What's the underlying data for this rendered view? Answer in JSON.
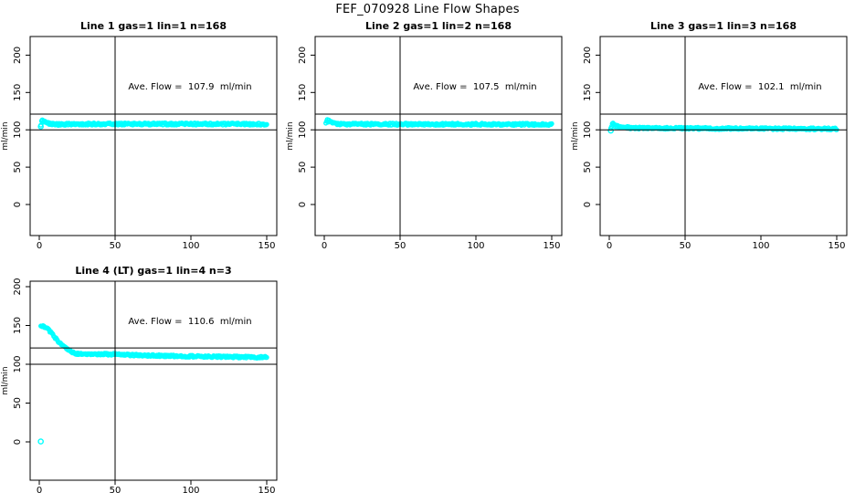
{
  "main_title": "FEF_070928  Line Flow Shapes",
  "accent_color": "#00FFFF",
  "axis_color": "#000000",
  "chart_data": [
    {
      "type": "scatter",
      "title": "Line 1 gas=1 lin=1 n=168",
      "annotation": "Ave. Flow =  107.9  ml/min",
      "ave_flow": 107.9,
      "ylabel": "ml/min",
      "x_ticks": [
        0,
        50,
        100,
        150
      ],
      "y_ticks": [
        0,
        50,
        100,
        150,
        200
      ],
      "xlim": [
        0,
        155
      ],
      "ylim": [
        0,
        200
      ],
      "vline": 50,
      "hlines": [
        100,
        121
      ],
      "grid": false,
      "series": [
        {
          "name": "flow-trace",
          "band": 1.4,
          "keypoints": [
            [
              1,
              108
            ],
            [
              1.5,
              110
            ],
            [
              2,
              112
            ],
            [
              3,
              111.5
            ],
            [
              4,
              110
            ],
            [
              5,
              109
            ],
            [
              7,
              108
            ],
            [
              10,
              107.5
            ],
            [
              15,
              107.3
            ],
            [
              20,
              107.5
            ],
            [
              30,
              107.8
            ],
            [
              50,
              107.8
            ],
            [
              70,
              107.8
            ],
            [
              100,
              107.9
            ],
            [
              120,
              107.8
            ],
            [
              150,
              107.6
            ]
          ]
        }
      ],
      "start_marker": [
        1,
        104.5
      ]
    },
    {
      "type": "scatter",
      "title": "Line 2 gas=1 lin=2 n=168",
      "annotation": "Ave. Flow =  107.5  ml/min",
      "ave_flow": 107.5,
      "ylabel": "ml/min",
      "x_ticks": [
        0,
        50,
        100,
        150
      ],
      "y_ticks": [
        0,
        50,
        100,
        150,
        200
      ],
      "xlim": [
        0,
        155
      ],
      "ylim": [
        0,
        200
      ],
      "vline": 50,
      "hlines": [
        100,
        121
      ],
      "grid": false,
      "series": [
        {
          "name": "flow-trace",
          "band": 1.4,
          "keypoints": [
            [
              1,
              109
            ],
            [
              1.5,
              111
            ],
            [
              2,
              112.5
            ],
            [
              3,
              112
            ],
            [
              4,
              110.5
            ],
            [
              5,
              109.5
            ],
            [
              7,
              108.5
            ],
            [
              10,
              108
            ],
            [
              15,
              107.7
            ],
            [
              30,
              107.6
            ],
            [
              60,
              107.5
            ],
            [
              100,
              107.5
            ],
            [
              150,
              107.2
            ]
          ]
        }
      ],
      "start_marker": null
    },
    {
      "type": "scatter",
      "title": "Line 3 gas=1 lin=3 n=168",
      "annotation": "Ave. Flow =  102.1  ml/min",
      "ave_flow": 102.1,
      "ylabel": "ml/min",
      "x_ticks": [
        0,
        50,
        100,
        150
      ],
      "y_ticks": [
        0,
        50,
        100,
        150,
        200
      ],
      "xlim": [
        0,
        155
      ],
      "ylim": [
        0,
        200
      ],
      "vline": 50,
      "hlines": [
        100,
        121
      ],
      "grid": false,
      "series": [
        {
          "name": "flow-trace",
          "band": 1.4,
          "keypoints": [
            [
              1,
              103
            ],
            [
              1.5,
              105
            ],
            [
              2,
              107
            ],
            [
              3,
              107
            ],
            [
              4,
              106
            ],
            [
              5,
              105
            ],
            [
              7,
              104
            ],
            [
              10,
              103.2
            ],
            [
              15,
              102.6
            ],
            [
              25,
              102.2
            ],
            [
              50,
              102
            ],
            [
              80,
              101.7
            ],
            [
              120,
              101.4
            ],
            [
              150,
              101.2
            ]
          ]
        }
      ],
      "start_marker": [
        1,
        99
      ]
    },
    {
      "type": "scatter",
      "title": "Line 4 (LT) gas=1 lin=4 n=3",
      "annotation": "Ave. Flow =  110.6  ml/min",
      "ave_flow": 110.6,
      "ylabel": "ml/min",
      "x_ticks": [
        0,
        50,
        100,
        150
      ],
      "y_ticks": [
        0,
        50,
        100,
        150,
        200
      ],
      "xlim": [
        0,
        155
      ],
      "ylim": [
        0,
        200
      ],
      "vline": 50,
      "hlines": [
        100,
        121
      ],
      "grid": false,
      "series": [
        {
          "name": "flow-trace",
          "band": 1.2,
          "keypoints": [
            [
              1,
              149.5
            ],
            [
              2,
              150
            ],
            [
              3,
              149.5
            ],
            [
              4,
              148
            ],
            [
              5,
              146.5
            ],
            [
              6,
              144.5
            ],
            [
              7,
              142.5
            ],
            [
              8,
              140.5
            ],
            [
              9,
              138
            ],
            [
              10,
              135.5
            ],
            [
              11,
              133
            ],
            [
              12,
              130.5
            ],
            [
              13,
              128.5
            ],
            [
              14,
              126.5
            ],
            [
              15,
              124.5
            ],
            [
              16,
              123
            ],
            [
              17,
              121.5
            ],
            [
              18,
              120
            ],
            [
              19,
              118.5
            ],
            [
              20,
              117.5
            ],
            [
              22,
              115.5
            ],
            [
              24,
              114
            ],
            [
              26,
              113.2
            ],
            [
              28,
              112.8
            ],
            [
              30,
              112.7
            ],
            [
              35,
              113
            ],
            [
              40,
              113.2
            ],
            [
              45,
              113
            ],
            [
              50,
              112.8
            ],
            [
              55,
              112.5
            ],
            [
              60,
              112
            ],
            [
              70,
              111.5
            ],
            [
              80,
              111
            ],
            [
              90,
              110.5
            ],
            [
              100,
              110.3
            ],
            [
              110,
              110
            ],
            [
              120,
              109.8
            ],
            [
              130,
              109.5
            ],
            [
              140,
              109.3
            ],
            [
              150,
              109
            ]
          ]
        }
      ],
      "start_marker": [
        1,
        0.5
      ]
    }
  ]
}
